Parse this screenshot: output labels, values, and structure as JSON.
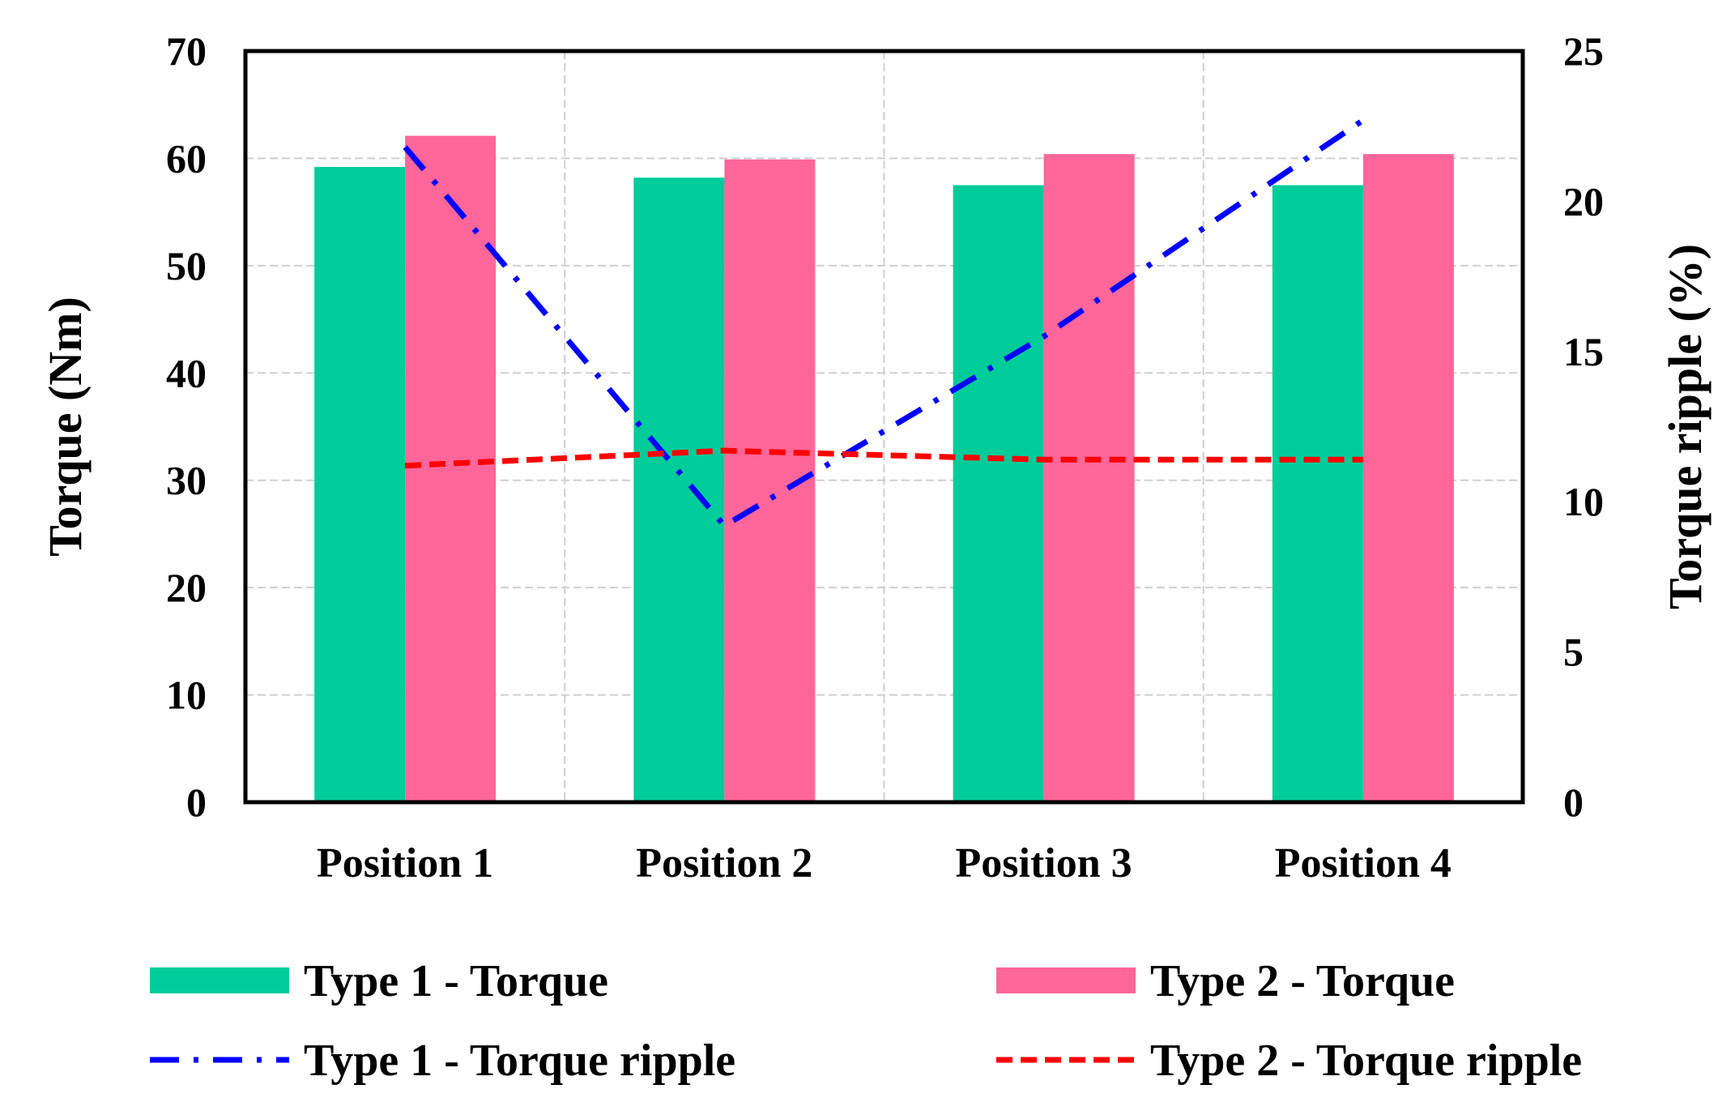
{
  "chart_data": {
    "type": "bar",
    "categories": [
      "Position 1",
      "Position 2",
      "Position 3",
      "Position 4"
    ],
    "y_left": {
      "label": "Torque (Nm)",
      "ylim": [
        0,
        70
      ],
      "ticks": [
        "0",
        "10",
        "20",
        "30",
        "40",
        "50",
        "60",
        "70"
      ]
    },
    "y_right": {
      "label": "Torque ripple  (%)",
      "ylim": [
        0,
        25
      ],
      "ticks": [
        "0",
        "5",
        "10",
        "15",
        "20",
        "25"
      ]
    },
    "grid": true,
    "legend_position": "bottom",
    "series": [
      {
        "name": "Type 1 - Torque",
        "kind": "bar",
        "axis": "left",
        "color": "#00CC99",
        "values": [
          59.2,
          58.2,
          57.5,
          57.5
        ]
      },
      {
        "name": "Type 2 - Torque",
        "kind": "bar",
        "axis": "left",
        "color": "#FF6699",
        "values": [
          62.1,
          59.9,
          60.4,
          60.4
        ]
      },
      {
        "name": "Type 1 - Torque ripple",
        "kind": "line",
        "axis": "right",
        "color": "#0000FF",
        "dash": "dash-dot",
        "values": [
          21.8,
          9.2,
          15.5,
          22.7
        ]
      },
      {
        "name": "Type 2 - Torque ripple",
        "kind": "line",
        "axis": "right",
        "color": "#FF0000",
        "dash": "dashed",
        "values": [
          11.2,
          11.7,
          11.4,
          11.4
        ]
      }
    ]
  }
}
